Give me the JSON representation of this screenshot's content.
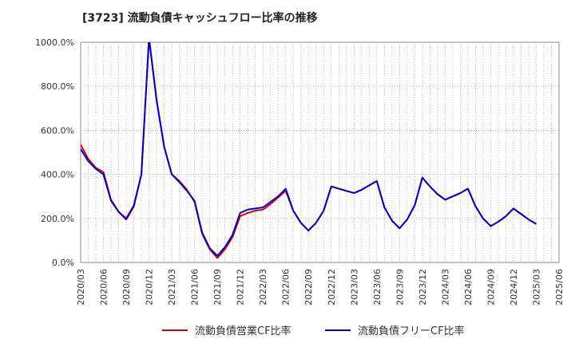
{
  "chart_data": {
    "type": "line",
    "title": "[3723]  流動負債キャッシュフロー比率の推移",
    "xlabel": "",
    "ylabel": "",
    "ylim": [
      0,
      1000
    ],
    "y_ticks": [
      "0.0%",
      "200.0%",
      "400.0%",
      "600.0%",
      "800.0%",
      "1000.0%"
    ],
    "x_tick_labels": [
      "2020/03",
      "2020/06",
      "2020/09",
      "2020/12",
      "2021/03",
      "2021/06",
      "2021/09",
      "2021/12",
      "2022/03",
      "2022/06",
      "2022/09",
      "2022/12",
      "2023/03",
      "2023/06",
      "2023/09",
      "2023/12",
      "2024/03",
      "2024/06",
      "2024/09",
      "2024/12",
      "2025/03",
      "2025/06"
    ],
    "grid": true,
    "legend_position": "bottom",
    "series": [
      {
        "name": "流動負債営業CF比率",
        "color": "#dd0000",
        "values": [
          535,
          470,
          430,
          410,
          285,
          230,
          200,
          260,
          400,
          1020,
          740,
          525,
          400,
          370,
          330,
          275,
          130,
          60,
          20,
          60,
          115,
          210,
          225,
          235,
          240,
          265,
          295,
          325,
          235,
          180,
          145,
          180,
          235,
          345,
          335,
          325,
          315,
          330,
          350,
          370,
          250,
          190,
          155,
          195,
          260,
          385,
          345,
          310,
          285,
          300,
          315,
          335,
          255,
          200,
          165,
          185,
          210,
          245,
          220,
          195,
          175
        ]
      },
      {
        "name": "流動負債フリーCF比率",
        "color": "#0000cc",
        "values": [
          515,
          460,
          425,
          400,
          280,
          230,
          195,
          255,
          400,
          1020,
          735,
          525,
          400,
          365,
          325,
          280,
          135,
          65,
          30,
          70,
          125,
          225,
          240,
          245,
          250,
          275,
          300,
          335,
          235,
          180,
          145,
          180,
          235,
          345,
          335,
          325,
          315,
          330,
          350,
          370,
          250,
          190,
          155,
          195,
          260,
          385,
          345,
          310,
          285,
          300,
          315,
          335,
          255,
          200,
          165,
          185,
          210,
          245,
          220,
          195,
          175
        ]
      }
    ]
  }
}
